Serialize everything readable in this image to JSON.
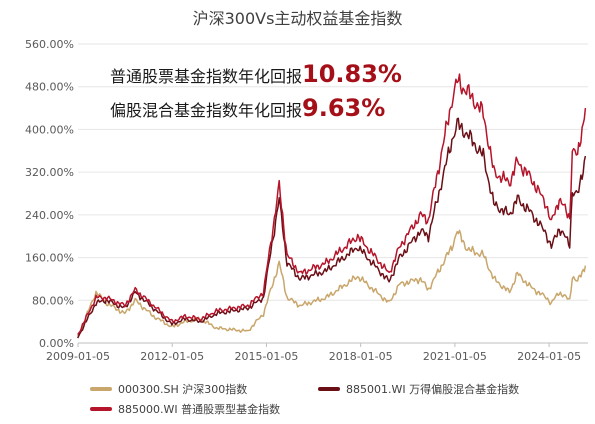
{
  "chart_data": {
    "type": "line",
    "title": "沪深300Vs主动权益基金指数",
    "xlabel": "",
    "ylabel": "",
    "ylim": [
      0,
      560
    ],
    "yticks": [
      "0.00%",
      "80.00%",
      "160.00%",
      "240.00%",
      "320.00%",
      "400.00%",
      "480.00%",
      "560.00%"
    ],
    "xticks": [
      "2009-01-05",
      "2012-01-05",
      "2015-01-05",
      "2018-01-05",
      "2021-01-05",
      "2024-01-05"
    ],
    "x_range": [
      "2009-01-05",
      "2025-03-31"
    ],
    "grid": "horizontal",
    "legend_position": "bottom",
    "series": [
      {
        "name": "000300.SH 沪深300指数",
        "color": "#c9a66b",
        "x": [
          "2009-01",
          "2009-08",
          "2009-12",
          "2010-07",
          "2010-11",
          "2011-06",
          "2012-01",
          "2012-06",
          "2012-12",
          "2013-06",
          "2014-06",
          "2014-12",
          "2015-06",
          "2015-09",
          "2016-02",
          "2016-12",
          "2017-12",
          "2018-12",
          "2019-04",
          "2019-12",
          "2020-03",
          "2020-12",
          "2021-02",
          "2021-06",
          "2021-12",
          "2022-04",
          "2022-10",
          "2023-01",
          "2023-06",
          "2023-12",
          "2024-02",
          "2024-05",
          "2024-09",
          "2024-10",
          "2024-12",
          "2025-03"
        ],
        "values": [
          10,
          95,
          75,
          55,
          80,
          50,
          30,
          40,
          45,
          28,
          22,
          55,
          150,
          85,
          70,
          85,
          125,
          75,
          110,
          120,
          100,
          180,
          210,
          175,
          165,
          120,
          95,
          130,
          105,
          85,
          75,
          95,
          80,
          125,
          115,
          145
        ]
      },
      {
        "name": "885001.WI 万得偏股混合基金指数",
        "color": "#6b0f16",
        "x": [
          "2009-01",
          "2009-08",
          "2009-12",
          "2010-07",
          "2010-11",
          "2011-06",
          "2012-01",
          "2012-06",
          "2012-12",
          "2013-06",
          "2014-06",
          "2014-12",
          "2015-06",
          "2015-09",
          "2016-02",
          "2016-12",
          "2017-12",
          "2018-12",
          "2019-04",
          "2019-12",
          "2020-03",
          "2020-12",
          "2021-02",
          "2021-06",
          "2021-12",
          "2022-04",
          "2022-10",
          "2023-01",
          "2023-06",
          "2023-12",
          "2024-02",
          "2024-05",
          "2024-09",
          "2024-10",
          "2024-12",
          "2025-03"
        ],
        "values": [
          10,
          75,
          80,
          65,
          95,
          65,
          35,
          45,
          40,
          55,
          65,
          85,
          270,
          150,
          120,
          135,
          180,
          115,
          160,
          210,
          200,
          380,
          410,
          390,
          350,
          260,
          240,
          270,
          245,
          205,
          180,
          215,
          185,
          285,
          275,
          350
        ]
      },
      {
        "name": "885000.WI 普通股票型基金指数",
        "color": "#b5152b",
        "x": [
          "2009-01",
          "2009-08",
          "2009-12",
          "2010-07",
          "2010-11",
          "2011-06",
          "2012-01",
          "2012-06",
          "2012-12",
          "2013-06",
          "2014-06",
          "2014-12",
          "2015-06",
          "2015-09",
          "2016-02",
          "2016-12",
          "2017-12",
          "2018-12",
          "2019-04",
          "2019-12",
          "2020-03",
          "2020-12",
          "2021-02",
          "2021-06",
          "2021-12",
          "2022-04",
          "2022-10",
          "2023-01",
          "2023-06",
          "2023-12",
          "2024-02",
          "2024-05",
          "2024-09",
          "2024-10",
          "2024-12",
          "2025-03"
        ],
        "values": [
          15,
          85,
          85,
          70,
          100,
          70,
          40,
          50,
          45,
          60,
          70,
          95,
          295,
          165,
          130,
          150,
          200,
          130,
          180,
          240,
          230,
          455,
          490,
          470,
          430,
          320,
          300,
          340,
          310,
          260,
          225,
          270,
          235,
          360,
          350,
          440
        ]
      }
    ],
    "annotations": [
      {
        "text": "普通股票基金指数年化回报",
        "value": "10.83%"
      },
      {
        "text": "偏股混合基金指数年化回报",
        "value": "9.63%"
      }
    ]
  }
}
